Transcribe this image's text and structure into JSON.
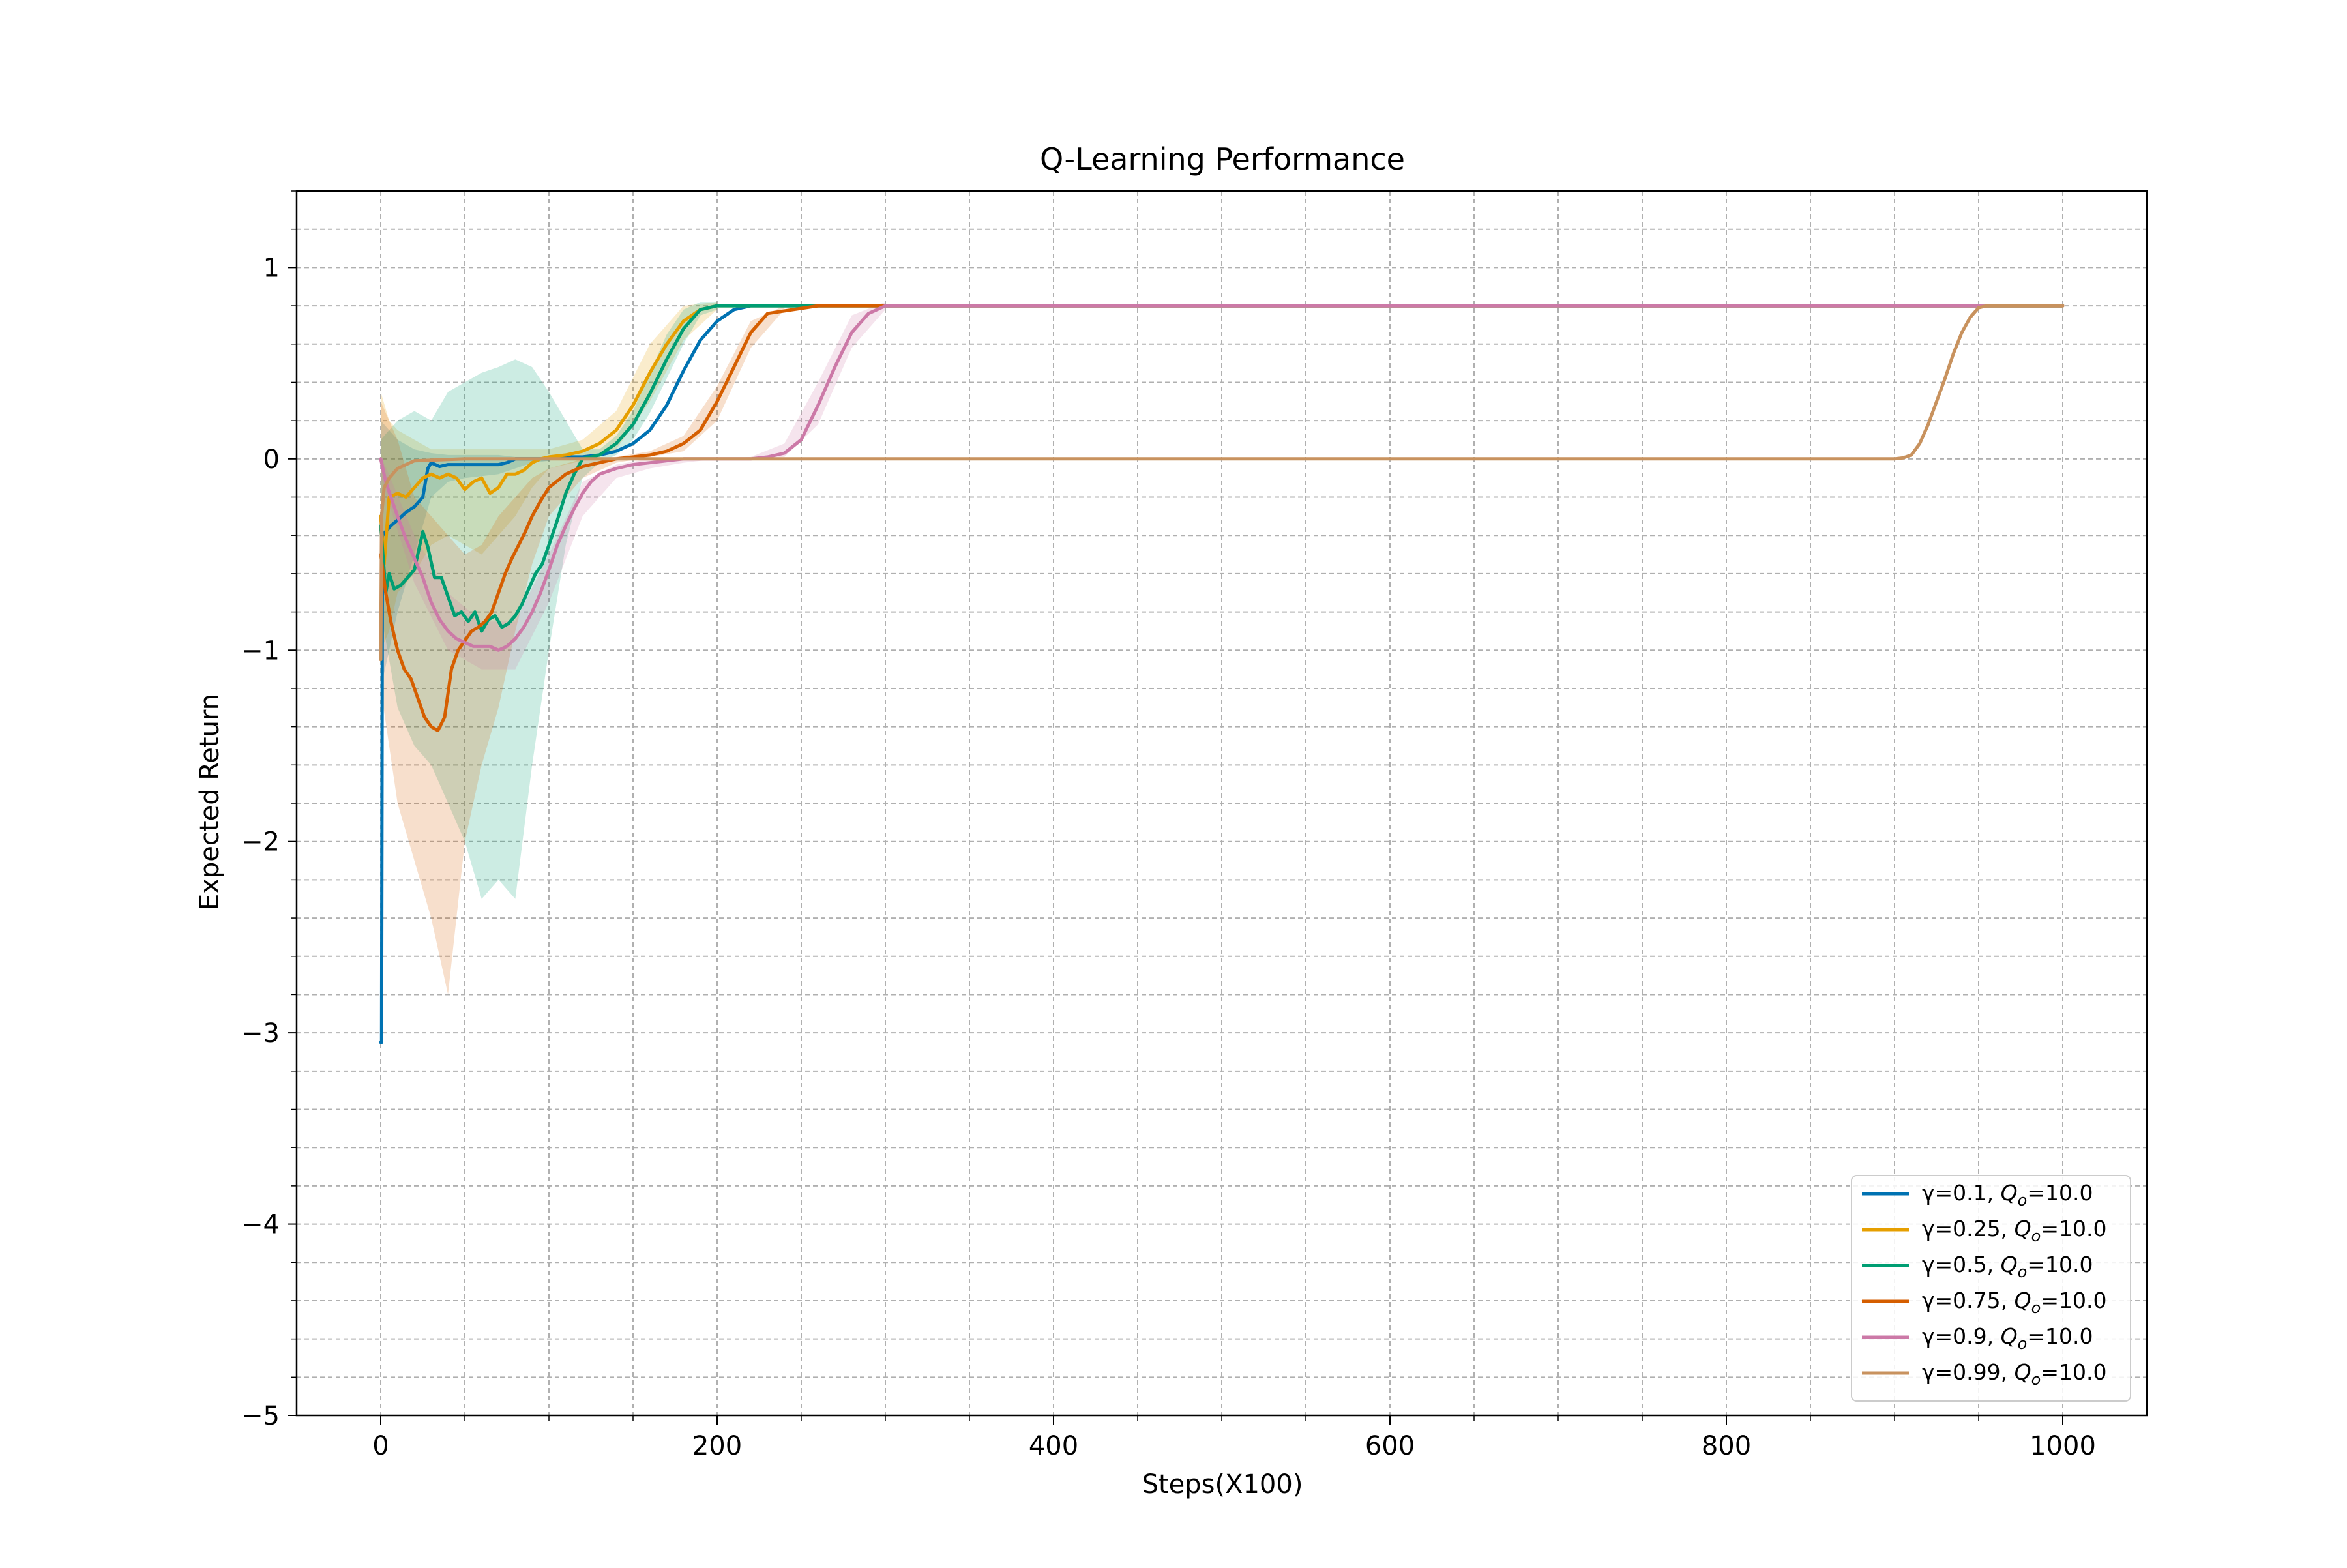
{
  "chart_data": {
    "type": "line",
    "title": "Q-Learning Performance",
    "xlabel": "Steps(X100)",
    "ylabel": "Expected Return",
    "xlim": [
      -50,
      1050
    ],
    "ylim": [
      -5,
      1.4
    ],
    "x_ticks": [
      0,
      200,
      400,
      600,
      800,
      1000
    ],
    "x_tick_labels": [
      "0",
      "200",
      "400",
      "600",
      "800",
      "1000"
    ],
    "y_ticks": [
      -5,
      -4,
      -3,
      -2,
      -1,
      0,
      1
    ],
    "y_tick_labels": [
      "−5",
      "−4",
      "−3",
      "−2",
      "−1",
      "0",
      "1"
    ],
    "grid": true,
    "minor_grid": true,
    "legend_position": "lower right",
    "series": [
      {
        "name": "γ=0.1, Q_o=10.0",
        "label_main": "γ=0.1, ",
        "label_q": "Q",
        "label_sub": "o",
        "label_val": "=10.0",
        "color": "#0072b2",
        "x": [
          0,
          0.5,
          1,
          3,
          6,
          10,
          15,
          20,
          25,
          28,
          30,
          35,
          40,
          50,
          60,
          70,
          75,
          80,
          90,
          100,
          110,
          120,
          130,
          140,
          150,
          160,
          170,
          180,
          190,
          200,
          210,
          220,
          230,
          260,
          300,
          400,
          600,
          800,
          1000
        ],
        "y": [
          -3.05,
          -3.05,
          -0.4,
          -0.38,
          -0.35,
          -0.32,
          -0.28,
          -0.25,
          -0.2,
          -0.05,
          -0.02,
          -0.04,
          -0.03,
          -0.03,
          -0.03,
          -0.03,
          -0.02,
          0,
          0,
          0,
          0.01,
          0.01,
          0.02,
          0.04,
          0.08,
          0.15,
          0.28,
          0.46,
          0.62,
          0.72,
          0.78,
          0.8,
          0.8,
          0.8,
          0.8,
          0.8,
          0.8,
          0.8,
          0.8
        ],
        "band_x": [
          0,
          10,
          20,
          30,
          40,
          50,
          60,
          70,
          80,
          90,
          100
        ],
        "band_upper": [
          0.2,
          0.1,
          0.05,
          0.03,
          0.02,
          0.02,
          0.02,
          0.02,
          0.01,
          0.01,
          0.01
        ],
        "band_lower": [
          -1.2,
          -0.8,
          -0.5,
          -0.2,
          -0.12,
          -0.1,
          -0.09,
          -0.08,
          -0.05,
          -0.02,
          -0.01
        ]
      },
      {
        "name": "γ=0.25, Q_o=10.0",
        "label_main": "γ=0.25, ",
        "label_q": "Q",
        "label_sub": "o",
        "label_val": "=10.0",
        "color": "#e69f00",
        "x": [
          0,
          2,
          5,
          10,
          15,
          20,
          25,
          30,
          35,
          40,
          45,
          50,
          55,
          60,
          65,
          70,
          75,
          80,
          85,
          90,
          95,
          100,
          110,
          120,
          130,
          140,
          150,
          160,
          170,
          180,
          190,
          200,
          210,
          220,
          250,
          300,
          500,
          800,
          1000
        ],
        "y": [
          -0.3,
          -0.55,
          -0.2,
          -0.18,
          -0.2,
          -0.15,
          -0.1,
          -0.08,
          -0.1,
          -0.08,
          -0.1,
          -0.16,
          -0.12,
          -0.1,
          -0.18,
          -0.15,
          -0.08,
          -0.08,
          -0.06,
          -0.02,
          0,
          0.01,
          0.02,
          0.04,
          0.08,
          0.15,
          0.28,
          0.45,
          0.6,
          0.72,
          0.78,
          0.8,
          0.8,
          0.8,
          0.8,
          0.8,
          0.8,
          0.8,
          0.8
        ],
        "band_x": [
          0,
          5,
          10,
          20,
          30,
          40,
          50,
          60,
          70,
          80,
          90,
          100,
          120,
          140,
          160,
          180,
          200
        ],
        "band_upper": [
          0.35,
          0.2,
          0.15,
          0.1,
          0.05,
          0.05,
          0.05,
          0.05,
          0.05,
          0.05,
          0.05,
          0.05,
          0.1,
          0.25,
          0.6,
          0.8,
          0.82
        ],
        "band_lower": [
          -1.0,
          -0.9,
          -0.7,
          -0.6,
          -0.45,
          -0.4,
          -0.45,
          -0.5,
          -0.4,
          -0.3,
          -0.15,
          -0.05,
          -0.01,
          0.05,
          0.3,
          0.62,
          0.78
        ]
      },
      {
        "name": "γ=0.5, Q_o=10.0",
        "label_main": "γ=0.5, ",
        "label_q": "Q",
        "label_sub": "o",
        "label_val": "=10.0",
        "color": "#009e73",
        "x": [
          0,
          3,
          5,
          8,
          12,
          16,
          20,
          25,
          28,
          32,
          36,
          40,
          44,
          48,
          52,
          56,
          60,
          64,
          68,
          72,
          76,
          80,
          84,
          88,
          92,
          96,
          100,
          105,
          110,
          115,
          120,
          130,
          140,
          150,
          160,
          170,
          180,
          190,
          200,
          210,
          250,
          300,
          500,
          800,
          1000
        ],
        "y": [
          -0.35,
          -0.7,
          -0.6,
          -0.68,
          -0.66,
          -0.62,
          -0.58,
          -0.38,
          -0.46,
          -0.62,
          -0.62,
          -0.72,
          -0.82,
          -0.8,
          -0.85,
          -0.8,
          -0.9,
          -0.84,
          -0.82,
          -0.88,
          -0.86,
          -0.82,
          -0.76,
          -0.68,
          -0.6,
          -0.55,
          -0.45,
          -0.32,
          -0.18,
          -0.08,
          0,
          0.02,
          0.08,
          0.18,
          0.34,
          0.52,
          0.68,
          0.78,
          0.8,
          0.8,
          0.8,
          0.8,
          0.8,
          0.8,
          0.8
        ],
        "band_x": [
          0,
          10,
          20,
          30,
          40,
          50,
          60,
          70,
          80,
          90,
          100,
          110,
          120,
          130,
          140,
          150,
          160,
          170,
          180,
          190,
          200
        ],
        "band_upper": [
          0.1,
          0.2,
          0.25,
          0.2,
          0.35,
          0.4,
          0.45,
          0.48,
          0.52,
          0.48,
          0.35,
          0.2,
          0.05,
          0.05,
          0.12,
          0.25,
          0.45,
          0.65,
          0.78,
          0.82,
          0.82
        ],
        "band_lower": [
          -0.8,
          -1.3,
          -1.5,
          -1.6,
          -1.8,
          -2.0,
          -2.3,
          -2.2,
          -2.3,
          -1.6,
          -1.0,
          -0.45,
          -0.1,
          -0.02,
          0.02,
          0.1,
          0.24,
          0.42,
          0.6,
          0.75,
          0.78
        ]
      },
      {
        "name": "γ=0.75, Q_o=10.0",
        "label_main": "γ=0.75, ",
        "label_q": "Q",
        "label_sub": "o",
        "label_val": "=10.0",
        "color": "#d55e00",
        "x": [
          0,
          3,
          6,
          10,
          14,
          18,
          22,
          26,
          30,
          34,
          38,
          42,
          46,
          50,
          54,
          58,
          62,
          66,
          70,
          74,
          78,
          82,
          86,
          90,
          95,
          100,
          110,
          120,
          130,
          140,
          150,
          160,
          170,
          180,
          190,
          200,
          210,
          220,
          230,
          260,
          300,
          500,
          800,
          1000
        ],
        "y": [
          -0.5,
          -0.7,
          -0.85,
          -1.0,
          -1.1,
          -1.15,
          -1.25,
          -1.35,
          -1.4,
          -1.42,
          -1.35,
          -1.1,
          -1.0,
          -0.95,
          -0.9,
          -0.88,
          -0.85,
          -0.8,
          -0.7,
          -0.6,
          -0.52,
          -0.45,
          -0.38,
          -0.3,
          -0.22,
          -0.15,
          -0.08,
          -0.04,
          -0.02,
          0,
          0.01,
          0.02,
          0.04,
          0.08,
          0.15,
          0.3,
          0.48,
          0.66,
          0.76,
          0.8,
          0.8,
          0.8,
          0.8,
          0.8
        ],
        "band_x": [
          0,
          10,
          20,
          30,
          40,
          50,
          60,
          70,
          80,
          90,
          100,
          120,
          140,
          160,
          180,
          200,
          220,
          240
        ],
        "band_upper": [
          0.3,
          0.1,
          -0.2,
          -0.3,
          -0.4,
          -0.5,
          -0.45,
          -0.3,
          -0.2,
          -0.1,
          -0.05,
          0,
          0.01,
          0.04,
          0.12,
          0.38,
          0.72,
          0.8
        ],
        "band_lower": [
          -1.2,
          -1.8,
          -2.1,
          -2.4,
          -2.8,
          -2.0,
          -1.6,
          -1.3,
          -0.9,
          -0.55,
          -0.3,
          -0.1,
          -0.02,
          0.01,
          0.04,
          0.2,
          0.58,
          0.78
        ]
      },
      {
        "name": "γ=0.9, Q_o=10.0",
        "label_main": "γ=0.9, ",
        "label_q": "Q",
        "label_sub": "o",
        "label_val": "=10.0",
        "color": "#cc79a7",
        "x": [
          0,
          3,
          6,
          10,
          15,
          20,
          25,
          30,
          35,
          40,
          45,
          50,
          55,
          60,
          65,
          70,
          75,
          80,
          85,
          90,
          95,
          100,
          105,
          110,
          115,
          120,
          125,
          130,
          140,
          150,
          160,
          170,
          180,
          200,
          220,
          230,
          240,
          250,
          260,
          270,
          280,
          290,
          300,
          320,
          500,
          800,
          1000
        ],
        "y": [
          0,
          -0.12,
          -0.2,
          -0.3,
          -0.42,
          -0.52,
          -0.62,
          -0.75,
          -0.84,
          -0.9,
          -0.94,
          -0.96,
          -0.98,
          -0.98,
          -0.98,
          -1.0,
          -0.98,
          -0.94,
          -0.88,
          -0.8,
          -0.7,
          -0.58,
          -0.45,
          -0.35,
          -0.26,
          -0.18,
          -0.12,
          -0.08,
          -0.05,
          -0.03,
          -0.02,
          -0.01,
          0,
          0,
          0,
          0.01,
          0.03,
          0.1,
          0.28,
          0.48,
          0.66,
          0.76,
          0.8,
          0.8,
          0.8,
          0.8,
          0.8
        ],
        "band_x": [
          0,
          20,
          40,
          60,
          80,
          100,
          120,
          140,
          160,
          180,
          200,
          220,
          240,
          260,
          280,
          300
        ],
        "band_upper": [
          0.02,
          -0.4,
          -0.7,
          -0.85,
          -0.85,
          -0.5,
          -0.12,
          -0.03,
          0,
          0,
          0,
          0.01,
          0.08,
          0.4,
          0.75,
          0.82
        ],
        "band_lower": [
          -0.1,
          -0.65,
          -1.0,
          -1.1,
          -1.1,
          -0.75,
          -0.3,
          -0.1,
          -0.05,
          -0.02,
          0,
          0,
          0.01,
          0.18,
          0.58,
          0.78
        ]
      },
      {
        "name": "γ=0.99, Q_o=10.0",
        "label_main": "γ=0.99, ",
        "label_q": "Q",
        "label_sub": "o",
        "label_val": "=10.0",
        "color": "#c8925e",
        "x": [
          0,
          0.5,
          2,
          5,
          10,
          20,
          50,
          100,
          200,
          400,
          600,
          800,
          900,
          905,
          910,
          915,
          920,
          925,
          930,
          935,
          940,
          945,
          950,
          955,
          960,
          1000
        ],
        "y": [
          -1.05,
          -0.3,
          -0.15,
          -0.1,
          -0.05,
          -0.01,
          0,
          0,
          0,
          0,
          0,
          0,
          0,
          0.005,
          0.02,
          0.08,
          0.18,
          0.3,
          0.42,
          0.55,
          0.66,
          0.74,
          0.79,
          0.8,
          0.8,
          0.8
        ],
        "band_x": [],
        "band_upper": [],
        "band_lower": []
      }
    ]
  }
}
